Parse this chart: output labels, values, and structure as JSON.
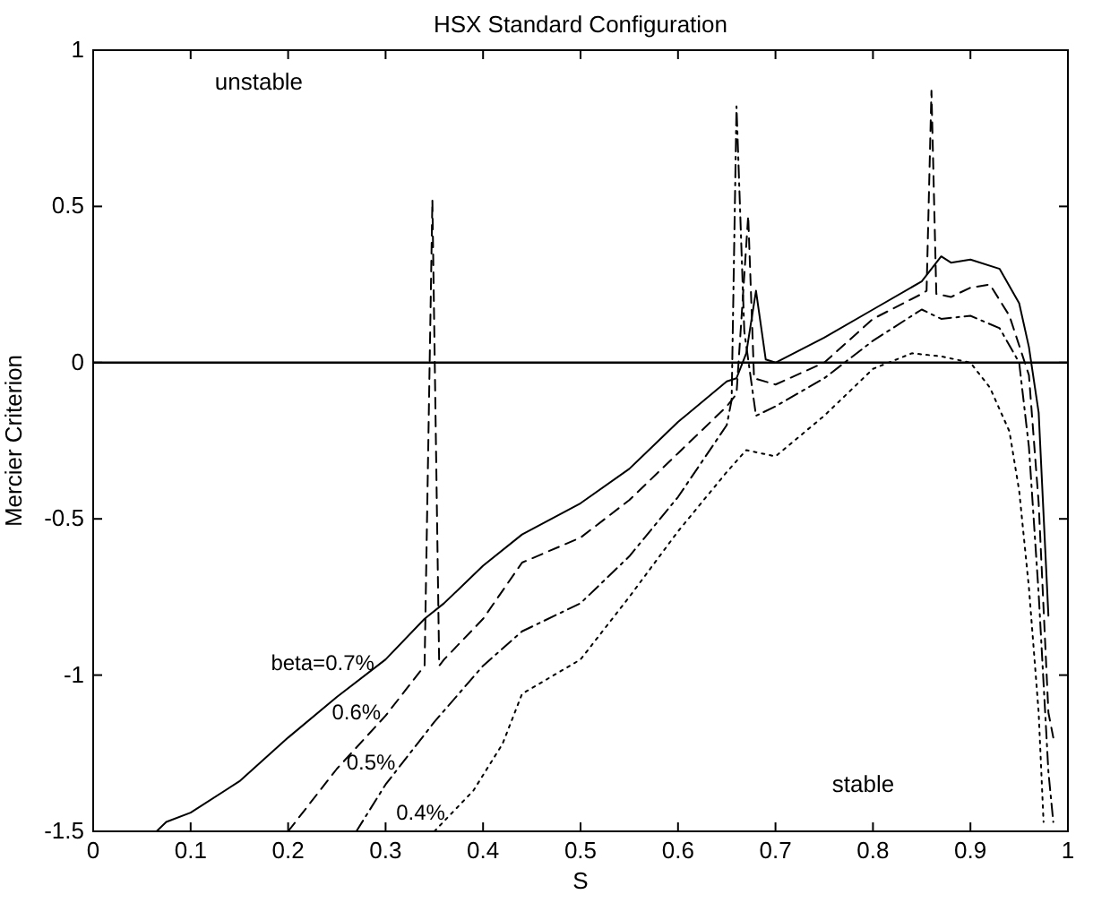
{
  "chart_data": {
    "type": "line",
    "title": "HSX Standard Configuration",
    "xlabel": "S",
    "ylabel": "Mercier Criterion",
    "xlim": [
      0,
      1
    ],
    "ylim": [
      -1.5,
      1
    ],
    "xticks": [
      0,
      0.1,
      0.2,
      0.3,
      0.4,
      0.5,
      0.6,
      0.7,
      0.8,
      0.9,
      1
    ],
    "yticks": [
      -1.5,
      -1,
      -0.5,
      0,
      0.5,
      1
    ],
    "grid": false,
    "marker": "none",
    "ref_lines": [
      {
        "axis": "y",
        "value": 0,
        "color": "#000000",
        "line_style": "solid"
      }
    ],
    "annotations": [
      "unstable",
      "stable"
    ],
    "series": [
      {
        "name": "beta=0.7%",
        "color": "#000000",
        "line_style": "solid",
        "x": [
          0.065,
          0.075,
          0.1,
          0.15,
          0.2,
          0.25,
          0.3,
          0.34,
          0.36,
          0.4,
          0.44,
          0.5,
          0.55,
          0.6,
          0.65,
          0.66,
          0.67,
          0.68,
          0.69,
          0.7,
          0.75,
          0.8,
          0.85,
          0.87,
          0.88,
          0.9,
          0.93,
          0.95,
          0.96,
          0.97,
          0.98
        ],
        "values": [
          -1.5,
          -1.47,
          -1.44,
          -1.34,
          -1.2,
          -1.07,
          -0.95,
          -0.82,
          -0.77,
          -0.65,
          -0.55,
          -0.45,
          -0.34,
          -0.19,
          -0.06,
          -0.05,
          0.03,
          0.23,
          0.01,
          0,
          0.08,
          0.17,
          0.26,
          0.34,
          0.32,
          0.33,
          0.3,
          0.19,
          0.05,
          -0.16,
          -0.81
        ]
      },
      {
        "name": "0.6%",
        "color": "#000000",
        "line_style": "dashed",
        "x": [
          0.2,
          0.25,
          0.3,
          0.34,
          0.348,
          0.355,
          0.36,
          0.4,
          0.44,
          0.5,
          0.55,
          0.6,
          0.65,
          0.66,
          0.672,
          0.678,
          0.7,
          0.75,
          0.8,
          0.85,
          0.855,
          0.86,
          0.865,
          0.88,
          0.9,
          0.92,
          0.94,
          0.96,
          0.97,
          0.98,
          0.985
        ],
        "values": [
          -1.5,
          -1.3,
          -1.13,
          -0.97,
          0.52,
          -0.97,
          -0.95,
          -0.82,
          -0.64,
          -0.56,
          -0.44,
          -0.29,
          -0.14,
          -0.1,
          0.47,
          -0.05,
          -0.07,
          0.0,
          0.14,
          0.22,
          0.23,
          0.87,
          0.22,
          0.21,
          0.24,
          0.25,
          0.15,
          -0.04,
          -0.45,
          -1.12,
          -1.2
        ]
      },
      {
        "name": "0.5%",
        "color": "#000000",
        "line_style": "dashdot",
        "x": [
          0.27,
          0.3,
          0.35,
          0.4,
          0.44,
          0.5,
          0.55,
          0.6,
          0.65,
          0.655,
          0.66,
          0.668,
          0.68,
          0.7,
          0.75,
          0.8,
          0.85,
          0.87,
          0.9,
          0.93,
          0.95,
          0.96,
          0.97,
          0.98,
          0.985
        ],
        "values": [
          -1.5,
          -1.35,
          -1.15,
          -0.97,
          -0.86,
          -0.77,
          -0.62,
          -0.43,
          -0.2,
          -0.12,
          0.82,
          0.1,
          -0.17,
          -0.14,
          -0.05,
          0.07,
          0.17,
          0.14,
          0.15,
          0.11,
          0,
          -0.27,
          -0.74,
          -1.31,
          -1.47
        ]
      },
      {
        "name": "0.4%",
        "color": "#000000",
        "line_style": "dotted",
        "x": [
          0.35,
          0.39,
          0.42,
          0.44,
          0.5,
          0.55,
          0.6,
          0.65,
          0.67,
          0.7,
          0.75,
          0.8,
          0.84,
          0.87,
          0.9,
          0.92,
          0.94,
          0.95,
          0.96,
          0.97,
          0.975
        ],
        "values": [
          -1.5,
          -1.37,
          -1.22,
          -1.06,
          -0.95,
          -0.75,
          -0.54,
          -0.35,
          -0.28,
          -0.3,
          -0.17,
          -0.02,
          0.03,
          0.02,
          0,
          -0.08,
          -0.22,
          -0.41,
          -0.72,
          -1.12,
          -1.47
        ]
      }
    ]
  }
}
